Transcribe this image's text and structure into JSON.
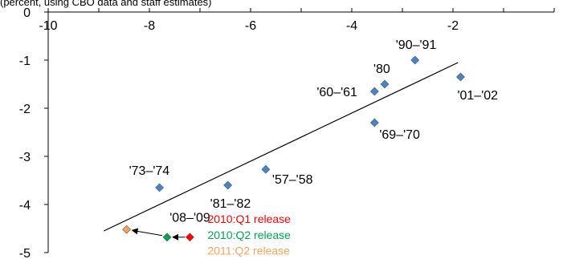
{
  "header_note": "(percent, using CBO data and staff estimates)",
  "chart_data": {
    "type": "scatter",
    "title": "",
    "xlabel": "",
    "ylabel": "",
    "xlim": [
      -10,
      0
    ],
    "ylim": [
      -5,
      0
    ],
    "x_ticks": [
      -10,
      -8,
      -6,
      -4,
      -2
    ],
    "y_ticks": [
      0,
      -1,
      -2,
      -3,
      -4,
      -5
    ],
    "grid": false,
    "points": [
      {
        "label": "'73–'74",
        "x": -7.8,
        "y": -3.65,
        "color": "#4f81bd"
      },
      {
        "label": "'81–'82",
        "x": -6.45,
        "y": -3.6,
        "color": "#4f81bd"
      },
      {
        "label": "'57–'58",
        "x": -5.7,
        "y": -3.27,
        "color": "#4f81bd"
      },
      {
        "label": "'60–'61",
        "x": -3.55,
        "y": -1.65,
        "color": "#4f81bd"
      },
      {
        "label": "'69–'70",
        "x": -3.55,
        "y": -2.3,
        "color": "#4f81bd"
      },
      {
        "label": "'80",
        "x": -3.35,
        "y": -1.5,
        "color": "#4f81bd"
      },
      {
        "label": "'90–'91",
        "x": -2.75,
        "y": -1.0,
        "color": "#4f81bd"
      },
      {
        "label": "'01–'02",
        "x": -1.85,
        "y": -1.35,
        "color": "#4f81bd"
      }
    ],
    "recession_2008": {
      "label": "'08–'09",
      "releases": [
        {
          "name": "2010:Q1 release",
          "x": -7.2,
          "y": -4.68,
          "color": "#ff0000"
        },
        {
          "name": "2010:Q2 release",
          "x": -7.65,
          "y": -4.68,
          "color": "#00a651"
        },
        {
          "name": "2011:Q2 release",
          "x": -8.45,
          "y": -4.52,
          "color": "#f7a35c"
        }
      ]
    },
    "trendline": {
      "x1": -8.9,
      "y1": -4.55,
      "x2": -1.9,
      "y2": -1.05,
      "color": "#000000"
    }
  }
}
